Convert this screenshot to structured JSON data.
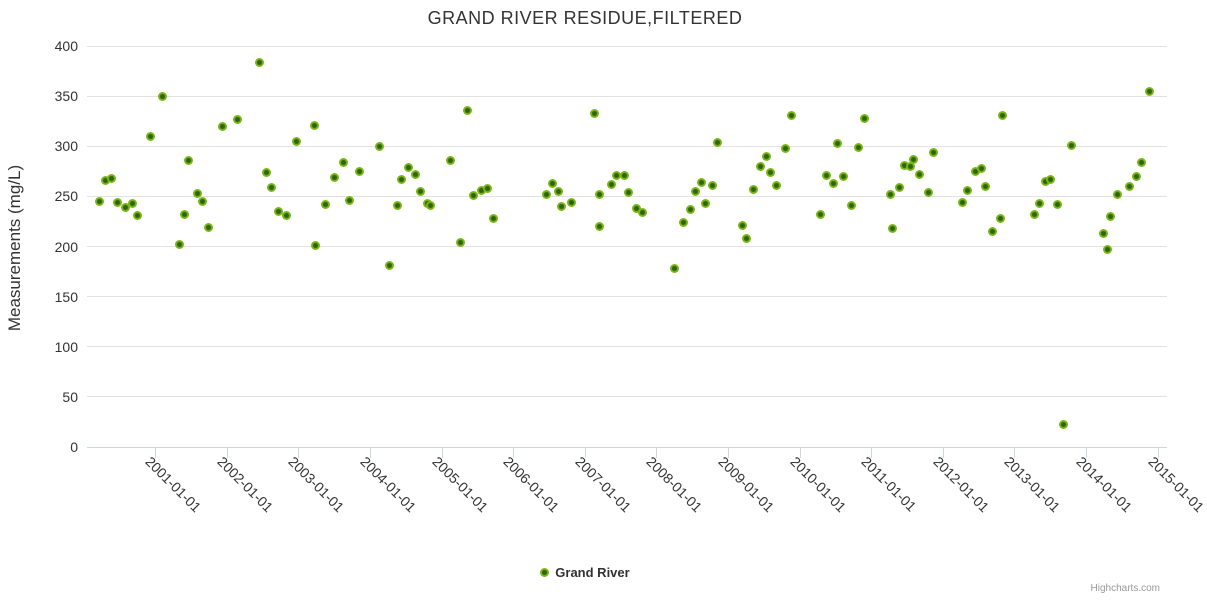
{
  "header": {
    "title": "GRAND RIVER RESIDUE,FILTERED"
  },
  "legend": {
    "label": "Grand River"
  },
  "credits": {
    "label": "Highcharts.com"
  },
  "colors": {
    "title_text": "#333333",
    "axis_label_text": "#333333",
    "grid_line": "#e2e2e2",
    "axis_line": "#ccd6eb",
    "point_outer": "#7ab812",
    "point_inner": "#2f6310",
    "credits_text": "#999999"
  },
  "chart_data": {
    "type": "scatter",
    "title": "GRAND RIVER RESIDUE,FILTERED",
    "xlabel": "",
    "ylabel": "Measurements (mg/L)",
    "grid": "horizontal-only",
    "legend_position": "bottom-center",
    "x_axis": {
      "kind": "datetime (decimal years)",
      "min": 2000.05,
      "max": 2015.13,
      "tick_years": [
        2001,
        2002,
        2003,
        2004,
        2005,
        2006,
        2007,
        2008,
        2009,
        2010,
        2011,
        2012,
        2013,
        2014,
        2015
      ],
      "tick_labels": [
        "2001-01-01",
        "2002-01-01",
        "2003-01-01",
        "2004-01-01",
        "2005-01-01",
        "2006-01-01",
        "2007-01-01",
        "2008-01-01",
        "2009-01-01",
        "2010-01-01",
        "2011-01-01",
        "2012-01-01",
        "2013-01-01",
        "2014-01-01",
        "2015-01-01"
      ],
      "label_rotation_deg": 45
    },
    "y_axis": {
      "min": 0,
      "max": 400,
      "ticks": [
        0,
        50,
        100,
        150,
        200,
        250,
        300,
        350,
        400
      ]
    },
    "series": [
      {
        "name": "Grand River",
        "marker": "circle",
        "points": [
          [
            2000.22,
            245
          ],
          [
            2000.31,
            266
          ],
          [
            2000.39,
            268
          ],
          [
            2000.47,
            244
          ],
          [
            2000.59,
            239
          ],
          [
            2000.69,
            243
          ],
          [
            2000.76,
            231
          ],
          [
            2000.94,
            310
          ],
          [
            2001.11,
            350
          ],
          [
            2001.34,
            202
          ],
          [
            2001.41,
            232
          ],
          [
            2001.47,
            286
          ],
          [
            2001.59,
            253
          ],
          [
            2001.66,
            245
          ],
          [
            2001.75,
            219
          ],
          [
            2001.94,
            320
          ],
          [
            2002.15,
            327
          ],
          [
            2002.46,
            384
          ],
          [
            2002.56,
            274
          ],
          [
            2002.62,
            259
          ],
          [
            2002.73,
            235
          ],
          [
            2002.83,
            231
          ],
          [
            2002.98,
            305
          ],
          [
            2003.22,
            321
          ],
          [
            2003.24,
            201
          ],
          [
            2003.38,
            242
          ],
          [
            2003.5,
            269
          ],
          [
            2003.63,
            284
          ],
          [
            2003.71,
            246
          ],
          [
            2003.85,
            275
          ],
          [
            2004.14,
            300
          ],
          [
            2004.28,
            181
          ],
          [
            2004.38,
            241
          ],
          [
            2004.44,
            267
          ],
          [
            2004.54,
            279
          ],
          [
            2004.63,
            272
          ],
          [
            2004.7,
            255
          ],
          [
            2004.81,
            243
          ],
          [
            2004.85,
            241
          ],
          [
            2005.13,
            286
          ],
          [
            2005.27,
            204
          ],
          [
            2005.36,
            336
          ],
          [
            2005.44,
            251
          ],
          [
            2005.56,
            256
          ],
          [
            2005.64,
            258
          ],
          [
            2005.72,
            228
          ],
          [
            2006.47,
            252
          ],
          [
            2006.55,
            263
          ],
          [
            2006.63,
            255
          ],
          [
            2006.68,
            240
          ],
          [
            2006.81,
            244
          ],
          [
            2007.14,
            333
          ],
          [
            2007.2,
            220
          ],
          [
            2007.21,
            252
          ],
          [
            2007.38,
            262
          ],
          [
            2007.45,
            271
          ],
          [
            2007.56,
            271
          ],
          [
            2007.61,
            254
          ],
          [
            2007.72,
            238
          ],
          [
            2007.81,
            234
          ],
          [
            2008.26,
            178
          ],
          [
            2008.38,
            224
          ],
          [
            2008.47,
            237
          ],
          [
            2008.54,
            255
          ],
          [
            2008.63,
            264
          ],
          [
            2008.69,
            243
          ],
          [
            2008.78,
            261
          ],
          [
            2008.85,
            304
          ],
          [
            2009.2,
            221
          ],
          [
            2009.26,
            208
          ],
          [
            2009.36,
            257
          ],
          [
            2009.46,
            280
          ],
          [
            2009.54,
            290
          ],
          [
            2009.6,
            274
          ],
          [
            2009.68,
            261
          ],
          [
            2009.8,
            298
          ],
          [
            2009.89,
            331
          ],
          [
            2010.29,
            232
          ],
          [
            2010.38,
            271
          ],
          [
            2010.47,
            263
          ],
          [
            2010.53,
            303
          ],
          [
            2010.61,
            270
          ],
          [
            2010.72,
            241
          ],
          [
            2010.82,
            299
          ],
          [
            2010.9,
            328
          ],
          [
            2011.27,
            252
          ],
          [
            2011.3,
            218
          ],
          [
            2011.39,
            259
          ],
          [
            2011.46,
            281
          ],
          [
            2011.55,
            280
          ],
          [
            2011.59,
            287
          ],
          [
            2011.68,
            272
          ],
          [
            2011.8,
            254
          ],
          [
            2011.87,
            294
          ],
          [
            2012.28,
            244
          ],
          [
            2012.35,
            256
          ],
          [
            2012.45,
            275
          ],
          [
            2012.54,
            278
          ],
          [
            2012.6,
            260
          ],
          [
            2012.69,
            215
          ],
          [
            2012.8,
            228
          ],
          [
            2012.84,
            331
          ],
          [
            2013.28,
            232
          ],
          [
            2013.35,
            243
          ],
          [
            2013.43,
            265
          ],
          [
            2013.51,
            267
          ],
          [
            2013.6,
            242
          ],
          [
            2013.69,
            22
          ],
          [
            2013.8,
            301
          ],
          [
            2014.24,
            213
          ],
          [
            2014.3,
            197
          ],
          [
            2014.34,
            230
          ],
          [
            2014.44,
            252
          ],
          [
            2014.61,
            260
          ],
          [
            2014.71,
            270
          ],
          [
            2014.78,
            284
          ],
          [
            2014.88,
            355
          ]
        ]
      }
    ]
  }
}
